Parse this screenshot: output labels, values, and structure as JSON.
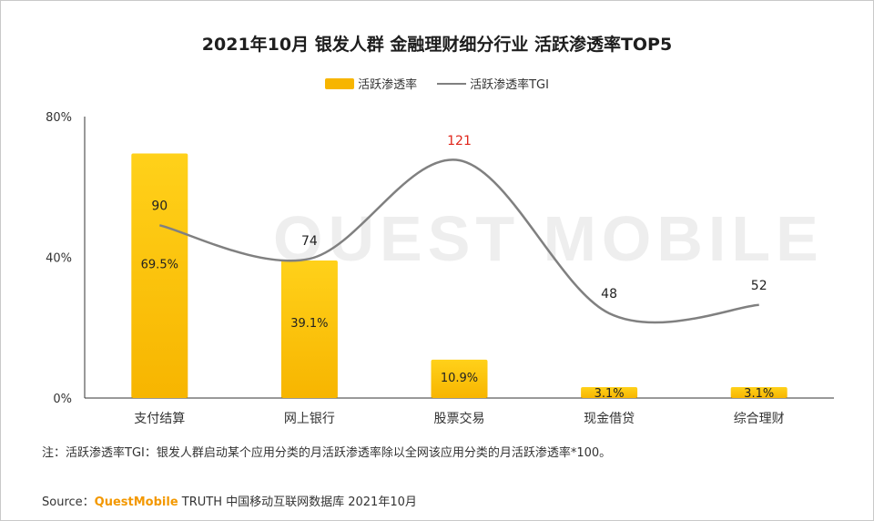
{
  "title": "2021年10月 银发人群 金融理财细分行业 活跃渗透率TOP5",
  "legend": {
    "bar_label": "活跃渗透率",
    "line_label": "活跃渗透率TGI"
  },
  "watermark": "QUEST MOBILE",
  "note": "注：活跃渗透率TGI：银发人群启动某个应用分类的月活跃渗透率除以全网该应用分类的月活跃渗透率*100。",
  "source": {
    "prefix": "Source：",
    "brand": "QuestMobile",
    "suffix": " TRUTH 中国移动互联网数据库 2021年10月"
  },
  "colors": {
    "bar": "#f7b500",
    "bar_light": "#ffd11a",
    "line": "#808080",
    "highlight_label": "#e0261b"
  },
  "chart_data": {
    "type": "bar",
    "categories": [
      "支付结算",
      "网上银行",
      "股票交易",
      "现金借贷",
      "综合理财"
    ],
    "series": [
      {
        "name": "活跃渗透率",
        "type": "bar",
        "values": [
          69.5,
          39.1,
          10.9,
          3.1,
          3.1
        ],
        "labels": [
          "69.5%",
          "39.1%",
          "10.9%",
          "3.1%",
          "3.1%"
        ]
      },
      {
        "name": "活跃渗透率TGI",
        "type": "line",
        "smooth": true,
        "values": [
          90,
          74,
          121,
          48,
          52
        ],
        "labels": [
          "90",
          "74",
          "121",
          "48",
          "52"
        ]
      }
    ],
    "y_ticks": [
      "0%",
      "40%",
      "80%"
    ],
    "ylim": [
      0,
      80
    ],
    "legend_position": "top-center"
  }
}
